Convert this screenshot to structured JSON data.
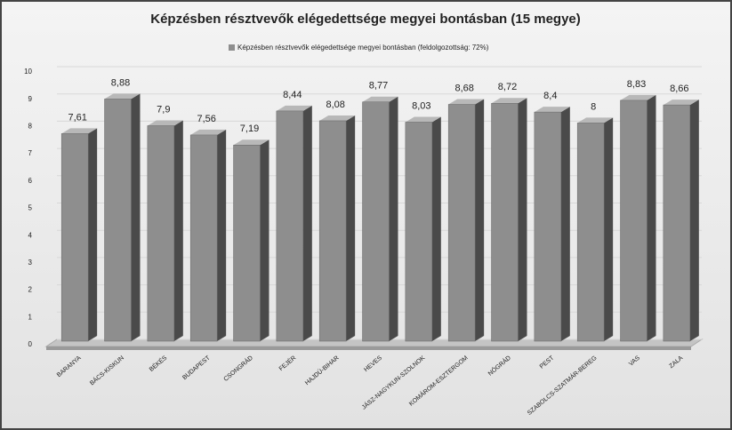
{
  "chart_data": {
    "type": "bar",
    "title": "Képzésben résztvevők elégedettsége megyei bontásban (15 megye)",
    "categories": [
      "BARANYA",
      "BÁCS-KISKUN",
      "BÉKÉS",
      "BUDAPEST",
      "CSONGRÁD",
      "FEJÉR",
      "HAJDÚ-BIHAR",
      "HEVES",
      "JÁSZ-NAGYKUN-SZOLNOK",
      "KOMÁROM-ESZTERGOM",
      "NÓGRÁD",
      "PEST",
      "SZABOLCS-SZATMÁR-BEREG",
      "VAS",
      "ZALA"
    ],
    "series": [
      {
        "name": "Képzésben résztvevők elégedettsége megyei bontásban (feldolgozottság: 72%)",
        "color": "#8e8e8e",
        "values": [
          7.61,
          8.88,
          7.9,
          7.56,
          7.19,
          8.44,
          8.08,
          8.77,
          8.03,
          8.68,
          8.72,
          8.4,
          8,
          8.83,
          8.66
        ],
        "value_labels": [
          "7,61",
          "8,88",
          "7,9",
          "7,56",
          "7,19",
          "8,44",
          "8,08",
          "8,77",
          "8,03",
          "8,68",
          "8,72",
          "8,4",
          "8",
          "8,83",
          "8,66"
        ]
      }
    ],
    "ylim": [
      0,
      10
    ],
    "yticks": [
      0,
      1,
      2,
      3,
      4,
      5,
      6,
      7,
      8,
      9,
      10
    ],
    "grid": true,
    "legend": "top"
  }
}
